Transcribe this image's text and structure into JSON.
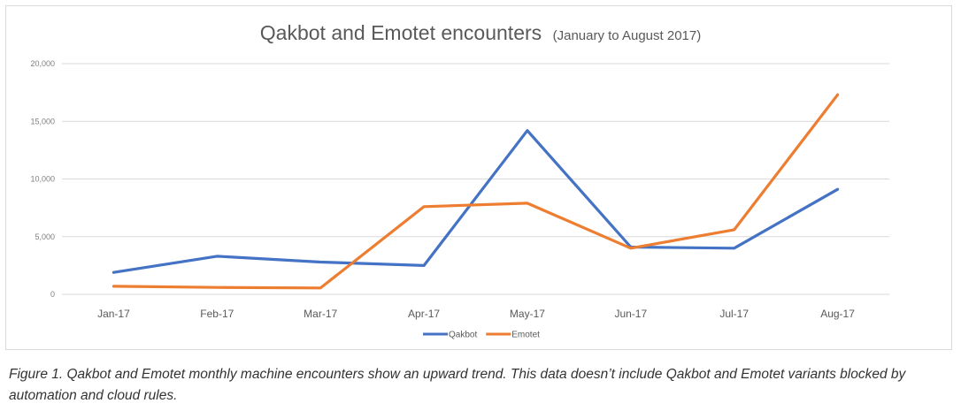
{
  "chart_data": {
    "type": "line",
    "title": "Qakbot and Emotet encounters",
    "subtitle": "(January to August 2017)",
    "categories": [
      "Jan-17",
      "Feb-17",
      "Mar-17",
      "Apr-17",
      "May-17",
      "Jun-17",
      "Jul-17",
      "Aug-17"
    ],
    "series": [
      {
        "name": "Qakbot",
        "color": "#4472c4",
        "values": [
          1900,
          3300,
          2800,
          2500,
          14200,
          4100,
          4000,
          9100
        ]
      },
      {
        "name": "Emotet",
        "color": "#ed7d31",
        "values": [
          700,
          600,
          550,
          7600,
          7900,
          4000,
          5600,
          17300
        ]
      }
    ],
    "y_ticks": [
      "0",
      "5,000",
      "10,000",
      "15,000",
      "20,000"
    ],
    "ylim": [
      0,
      20000
    ],
    "grid": true,
    "legend_position": "bottom"
  },
  "caption": "Figure 1. Qakbot and Emotet monthly machine encounters show an upward trend. This data doesn’t include Qakbot and Emotet variants blocked by automation and cloud rules."
}
